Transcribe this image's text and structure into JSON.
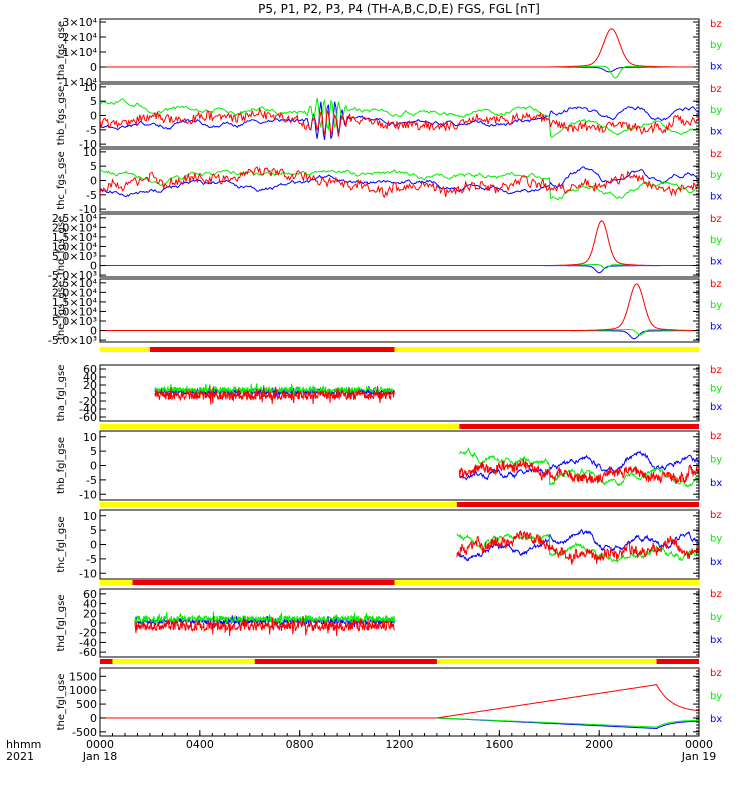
{
  "chart_data": {
    "type": "line",
    "title": "P5, P1, P2, P3, P4 (TH-A,B,C,D,E) FGS, FGL [nT]",
    "x_axis": {
      "ticks": [
        "0000",
        "0400",
        "0800",
        "1200",
        "1600",
        "2000",
        "0000"
      ],
      "date_labels": [
        "Jan 18",
        "Jan 19"
      ],
      "corner_label_top": "hhmm",
      "corner_label_bottom": "2021",
      "range_hours": [
        0,
        24
      ]
    },
    "legend_labels": [
      "bz",
      "by",
      "bx"
    ],
    "colors": {
      "bx": "#0000ff",
      "by": "#00ee00",
      "bz": "#ff0000",
      "bar_yellow": "#ffff00",
      "bar_red": "#ee0000"
    },
    "panels": [
      {
        "id": "tha_fgs",
        "ylabel": "tha_fgs_gse",
        "ticks": [
          {
            "v": -10000,
            "label": "-1×10⁴"
          },
          {
            "v": 0,
            "label": "0"
          },
          {
            "v": 10000,
            "label": "1×10⁴"
          },
          {
            "v": 20000,
            "label": "2×10⁴"
          },
          {
            "v": 30000,
            "label": "3×10⁴"
          }
        ],
        "ylim": [
          -10000,
          32000
        ],
        "kind": "spike",
        "spike": {
          "center": 20.5,
          "width": 0.45,
          "bz": 24000,
          "by": -8000,
          "bx": -3000
        },
        "data_start": 0,
        "data_end": 24
      },
      {
        "id": "thb_fgs",
        "ylabel": "thb_fgs_gse",
        "ticks": [
          {
            "v": -10,
            "label": "-10"
          },
          {
            "v": -5,
            "label": "-5"
          },
          {
            "v": 0,
            "label": "0"
          },
          {
            "v": 5,
            "label": "5"
          },
          {
            "v": 10,
            "label": "10"
          }
        ],
        "ylim": [
          -11,
          11
        ],
        "kind": "noisy",
        "seed": 7,
        "data_start": 0,
        "data_end": 24
      },
      {
        "id": "thc_fgs",
        "ylabel": "thc_fgs_gse",
        "ticks": [
          {
            "v": -10,
            "label": "-10"
          },
          {
            "v": -5,
            "label": "-5"
          },
          {
            "v": 0,
            "label": "0"
          },
          {
            "v": 5,
            "label": "5"
          },
          {
            "v": 10,
            "label": "10"
          }
        ],
        "ylim": [
          -11,
          11
        ],
        "kind": "noisy",
        "seed": 11,
        "data_start": 0,
        "data_end": 24
      },
      {
        "id": "thd_fgs",
        "ylabel": "thd_fgs_gse",
        "ticks": [
          {
            "v": -5000,
            "label": "-5.0×10³"
          },
          {
            "v": 0,
            "label": "0"
          },
          {
            "v": 5000,
            "label": "5.0×10³"
          },
          {
            "v": 10000,
            "label": "1.0×10⁴"
          },
          {
            "v": 15000,
            "label": "1.5×10⁴"
          },
          {
            "v": 20000,
            "label": "2.0×10⁴"
          },
          {
            "v": 25000,
            "label": "2.5×10⁴"
          }
        ],
        "ylim": [
          -6000,
          27000
        ],
        "kind": "spike",
        "spike": {
          "center": 20.1,
          "width": 0.35,
          "bz": 22000,
          "by": -2000,
          "bx": -3500
        },
        "data_start": 0,
        "data_end": 24
      },
      {
        "id": "the_fgs",
        "ylabel": "the_fgs_gse",
        "ticks": [
          {
            "v": -5000,
            "label": "-5.0×10³"
          },
          {
            "v": 0,
            "label": "0"
          },
          {
            "v": 5000,
            "label": "5.0×10³"
          },
          {
            "v": 10000,
            "label": "1.0×10⁴"
          },
          {
            "v": 15000,
            "label": "1.5×10⁴"
          },
          {
            "v": 20000,
            "label": "2.0×10⁴"
          },
          {
            "v": 25000,
            "label": "2.5×10⁴"
          }
        ],
        "ylim": [
          -6000,
          27000
        ],
        "kind": "spike",
        "spike": {
          "center": 21.5,
          "width": 0.4,
          "bz": 23000,
          "by": -3000,
          "bx": -4000
        },
        "data_start": 0,
        "data_end": 24
      },
      {
        "id": "tha_fgl",
        "ylabel": "tha_fgl_gse",
        "ticks": [
          {
            "v": -60,
            "label": "-60"
          },
          {
            "v": -40,
            "label": "-40"
          },
          {
            "v": -20,
            "label": "-20"
          },
          {
            "v": 0,
            "label": "0"
          },
          {
            "v": 20,
            "label": "20"
          },
          {
            "v": 40,
            "label": "40"
          },
          {
            "v": 60,
            "label": "60"
          }
        ],
        "ylim": [
          -70,
          70
        ],
        "kind": "burst",
        "seed": 3,
        "amp": 22,
        "data_start": 2.2,
        "data_end": 11.8,
        "bar": [
          {
            "from": 0,
            "to": 2.0,
            "color": "yellow"
          },
          {
            "from": 2.0,
            "to": 11.8,
            "color": "red"
          },
          {
            "from": 11.8,
            "to": 24,
            "color": "yellow"
          }
        ]
      },
      {
        "id": "thb_fgl",
        "ylabel": "thb_fgl_gse",
        "ticks": [
          {
            "v": -10,
            "label": "-10"
          },
          {
            "v": -5,
            "label": "-5"
          },
          {
            "v": 0,
            "label": "0"
          },
          {
            "v": 5,
            "label": "5"
          },
          {
            "v": 10,
            "label": "10"
          }
        ],
        "ylim": [
          -12,
          12
        ],
        "kind": "noisy",
        "seed": 7,
        "data_start": 14.4,
        "data_end": 24,
        "bar": [
          {
            "from": 0,
            "to": 14.4,
            "color": "yellow"
          },
          {
            "from": 14.4,
            "to": 24,
            "color": "red"
          }
        ]
      },
      {
        "id": "thc_fgl",
        "ylabel": "thc_fgl_gse",
        "ticks": [
          {
            "v": -10,
            "label": "-10"
          },
          {
            "v": -5,
            "label": "-5"
          },
          {
            "v": 0,
            "label": "0"
          },
          {
            "v": 5,
            "label": "5"
          },
          {
            "v": 10,
            "label": "10"
          }
        ],
        "ylim": [
          -12,
          12
        ],
        "kind": "noisy",
        "seed": 11,
        "data_start": 14.3,
        "data_end": 24,
        "bar": [
          {
            "from": 0,
            "to": 14.3,
            "color": "yellow"
          },
          {
            "from": 14.3,
            "to": 24,
            "color": "red"
          }
        ]
      },
      {
        "id": "thd_fgl",
        "ylabel": "thd_fgl_gse",
        "ticks": [
          {
            "v": -60,
            "label": "-60"
          },
          {
            "v": -40,
            "label": "-40"
          },
          {
            "v": -20,
            "label": "-20"
          },
          {
            "v": 0,
            "label": "0"
          },
          {
            "v": 20,
            "label": "20"
          },
          {
            "v": 40,
            "label": "40"
          },
          {
            "v": 60,
            "label": "60"
          }
        ],
        "ylim": [
          -70,
          70
        ],
        "kind": "burst",
        "seed": 5,
        "amp": 20,
        "data_start": 1.4,
        "data_end": 11.8,
        "bar": [
          {
            "from": 0,
            "to": 1.3,
            "color": "yellow"
          },
          {
            "from": 1.3,
            "to": 11.8,
            "color": "red"
          },
          {
            "from": 11.8,
            "to": 24,
            "color": "yellow"
          }
        ]
      },
      {
        "id": "the_fgl",
        "ylabel": "the_fgl_gse",
        "ticks": [
          {
            "v": -500,
            "label": "-500"
          },
          {
            "v": 0,
            "label": "0"
          },
          {
            "v": 500,
            "label": "500"
          },
          {
            "v": 1000,
            "label": "1000"
          },
          {
            "v": 1500,
            "label": "1500"
          }
        ],
        "ylim": [
          -650,
          1800
        ],
        "kind": "ramp",
        "data_start": 0,
        "data_end": 24,
        "bar": [
          {
            "from": 0,
            "to": 0.5,
            "color": "red"
          },
          {
            "from": 0.5,
            "to": 6.2,
            "color": "yellow"
          },
          {
            "from": 6.2,
            "to": 13.5,
            "color": "red"
          },
          {
            "from": 13.5,
            "to": 22.3,
            "color": "yellow"
          },
          {
            "from": 22.3,
            "to": 24,
            "color": "red"
          }
        ]
      }
    ]
  }
}
